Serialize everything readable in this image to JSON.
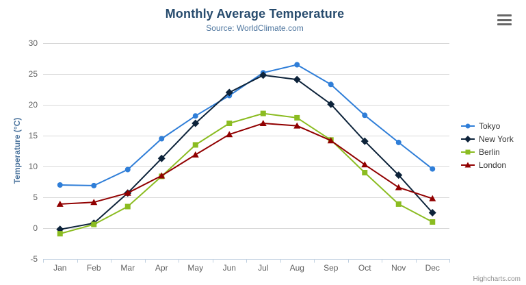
{
  "credits": {
    "text": "Highcharts.com"
  },
  "chart_data": {
    "type": "line",
    "title": "Monthly Average Temperature",
    "subtitle": "Source: WorldClimate.com",
    "xlabel": "",
    "ylabel": "Temperature (°C)",
    "ylim": [
      -5,
      30
    ],
    "yticks": [
      -5,
      0,
      5,
      10,
      15,
      20,
      25,
      30
    ],
    "grid": true,
    "legend_position": "right",
    "categories": [
      "Jan",
      "Feb",
      "Mar",
      "Apr",
      "May",
      "Jun",
      "Jul",
      "Aug",
      "Sep",
      "Oct",
      "Nov",
      "Dec"
    ],
    "series": [
      {
        "name": "Tokyo",
        "color": "#2f7ed8",
        "marker": "circle",
        "values": [
          7.0,
          6.9,
          9.5,
          14.5,
          18.2,
          21.5,
          25.2,
          26.5,
          23.3,
          18.3,
          13.9,
          9.6
        ]
      },
      {
        "name": "New York",
        "color": "#0d233a",
        "marker": "diamond",
        "values": [
          -0.2,
          0.8,
          5.7,
          11.3,
          17.0,
          22.0,
          24.8,
          24.1,
          20.1,
          14.1,
          8.6,
          2.5
        ]
      },
      {
        "name": "Berlin",
        "color": "#8bbc21",
        "marker": "square",
        "values": [
          -0.9,
          0.6,
          3.5,
          8.4,
          13.5,
          17.0,
          18.6,
          17.9,
          14.3,
          9.0,
          3.9,
          1.0
        ]
      },
      {
        "name": "London",
        "color": "#910000",
        "marker": "triangle",
        "values": [
          3.9,
          4.2,
          5.7,
          8.5,
          11.9,
          15.2,
          17.0,
          16.6,
          14.2,
          10.3,
          6.6,
          4.8
        ]
      }
    ],
    "colors": {
      "title": "#274b6d",
      "subtitle": "#4d759e",
      "axis_label": "#606060",
      "gridline": "#d8d8d8",
      "axis_line": "#c0d0e0",
      "credits": "#909090"
    }
  }
}
